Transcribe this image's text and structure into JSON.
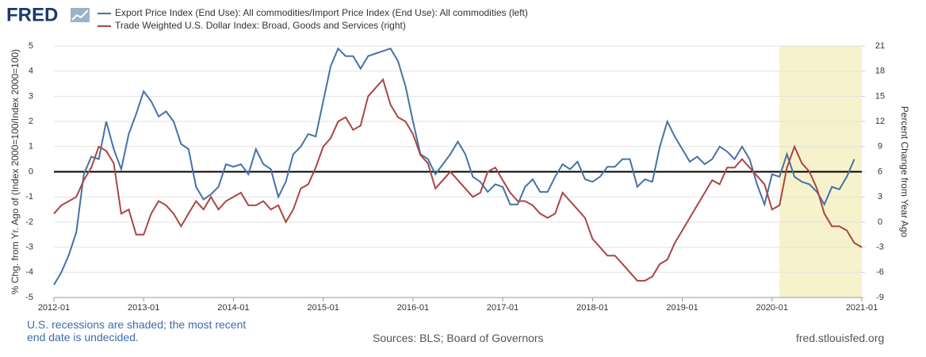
{
  "chart_data": {
    "type": "line",
    "logo": "FRED",
    "ylabel": "% Chg. from Yr. Ago of (Index 2000=100/Index 2000=100)",
    "y2label": "Percent Change from Year Ago",
    "note": "U.S. recessions are shaded; the most recent end date is undecided.",
    "source": "Sources: BLS; Board of Governors",
    "site": "fred.stlouisfed.org",
    "xlim": [
      "2012-01",
      "2021-01"
    ],
    "xticks": [
      "2012-01",
      "2013-01",
      "2014-01",
      "2015-01",
      "2016-01",
      "2017-01",
      "2018-01",
      "2019-01",
      "2020-01",
      "2021-01"
    ],
    "ylim": [
      -5,
      5
    ],
    "yticks": [
      -5,
      -4,
      -3,
      -2,
      -1,
      0,
      1,
      2,
      3,
      4,
      5
    ],
    "y2lim": [
      -9,
      21
    ],
    "y2ticks": [
      -9,
      -6,
      -3,
      0,
      3,
      6,
      9,
      12,
      15,
      18,
      21
    ],
    "grid": true,
    "reference_line": 0,
    "recessions": [
      {
        "start": "2020-02",
        "end": "2021-01"
      }
    ],
    "x": [
      "2012-01",
      "2012-02",
      "2012-03",
      "2012-04",
      "2012-05",
      "2012-06",
      "2012-07",
      "2012-08",
      "2012-09",
      "2012-10",
      "2012-11",
      "2012-12",
      "2013-01",
      "2013-02",
      "2013-03",
      "2013-04",
      "2013-05",
      "2013-06",
      "2013-07",
      "2013-08",
      "2013-09",
      "2013-10",
      "2013-11",
      "2013-12",
      "2014-01",
      "2014-02",
      "2014-03",
      "2014-04",
      "2014-05",
      "2014-06",
      "2014-07",
      "2014-08",
      "2014-09",
      "2014-10",
      "2014-11",
      "2014-12",
      "2015-01",
      "2015-02",
      "2015-03",
      "2015-04",
      "2015-05",
      "2015-06",
      "2015-07",
      "2015-08",
      "2015-09",
      "2015-10",
      "2015-11",
      "2015-12",
      "2016-01",
      "2016-02",
      "2016-03",
      "2016-04",
      "2016-05",
      "2016-06",
      "2016-07",
      "2016-08",
      "2016-09",
      "2016-10",
      "2016-11",
      "2016-12",
      "2017-01",
      "2017-02",
      "2017-03",
      "2017-04",
      "2017-05",
      "2017-06",
      "2017-07",
      "2017-08",
      "2017-09",
      "2017-10",
      "2017-11",
      "2017-12",
      "2018-01",
      "2018-02",
      "2018-03",
      "2018-04",
      "2018-05",
      "2018-06",
      "2018-07",
      "2018-08",
      "2018-09",
      "2018-10",
      "2018-11",
      "2018-12",
      "2019-01",
      "2019-02",
      "2019-03",
      "2019-04",
      "2019-05",
      "2019-06",
      "2019-07",
      "2019-08",
      "2019-09",
      "2019-10",
      "2019-11",
      "2019-12",
      "2020-01",
      "2020-02",
      "2020-03",
      "2020-04",
      "2020-05",
      "2020-06",
      "2020-07",
      "2020-08",
      "2020-09",
      "2020-10",
      "2020-11",
      "2020-12",
      "2021-01"
    ],
    "series": [
      {
        "name": "Export Price Index (End Use): All commodities/Import Price Index (End Use): All commodities (left)",
        "color": "#4572a7",
        "axis": "y",
        "values": [
          -4.5,
          -4.0,
          -3.3,
          -2.4,
          -0.1,
          0.6,
          0.5,
          2.0,
          0.9,
          0.1,
          1.5,
          2.3,
          3.2,
          2.8,
          2.2,
          2.4,
          2.0,
          1.1,
          0.9,
          -0.6,
          -1.1,
          -0.9,
          -0.6,
          0.3,
          0.2,
          0.3,
          -0.1,
          0.9,
          0.3,
          0.1,
          -1.0,
          -0.4,
          0.7,
          1.0,
          1.5,
          1.4,
          2.8,
          4.2,
          4.9,
          4.6,
          4.6,
          4.1,
          4.6,
          4.7,
          4.8,
          4.9,
          4.4,
          3.4,
          2.0,
          0.7,
          0.5,
          -0.1,
          0.3,
          0.7,
          1.2,
          0.7,
          -0.2,
          -0.4,
          -0.8,
          -0.5,
          -0.6,
          -1.3,
          -1.3,
          -0.6,
          -0.3,
          -0.8,
          -0.8,
          -0.2,
          0.3,
          0.1,
          0.4,
          -0.3,
          -0.4,
          -0.2,
          0.2,
          0.2,
          0.5,
          0.5,
          -0.6,
          -0.3,
          -0.4,
          1.0,
          2.0,
          1.4,
          0.9,
          0.4,
          0.6,
          0.3,
          0.5,
          1.0,
          0.8,
          0.5,
          1.0,
          0.5,
          -0.5,
          -1.3,
          -0.1,
          -0.2,
          0.7,
          -0.2,
          -0.4,
          -0.5,
          -0.8,
          -1.3,
          -0.6,
          -0.7,
          -0.2,
          0.5,
          null
        ]
      },
      {
        "name": "Trade Weighted U.S. Dollar Index: Broad, Goods and Services (right)",
        "color": "#aa4643",
        "axis": "y2",
        "values": [
          1,
          2,
          2.5,
          3,
          5,
          6.5,
          9,
          8.5,
          7,
          1,
          1.5,
          -1.5,
          -1.5,
          1,
          2.5,
          2,
          1,
          -0.5,
          1,
          2.5,
          1.5,
          3,
          1.5,
          2.5,
          3,
          3.5,
          2,
          2,
          2.5,
          1.5,
          2,
          0,
          1.5,
          4,
          4.5,
          6.5,
          9,
          10,
          12,
          12.5,
          11,
          11.5,
          15,
          16,
          17,
          14,
          12.5,
          12,
          10.5,
          8,
          7,
          4,
          5,
          6,
          5,
          4,
          3,
          3.5,
          6,
          6.5,
          5,
          3.5,
          2.5,
          2.5,
          2,
          1,
          0.5,
          1,
          3.5,
          2.5,
          1.5,
          0.5,
          -2,
          -3,
          -4,
          -4,
          -5,
          -6,
          -7,
          -7,
          -6.5,
          -5,
          -4.5,
          -2.5,
          -1,
          0.5,
          2,
          3.5,
          5,
          4.5,
          6.5,
          6.5,
          7.5,
          6.5,
          5.5,
          4.5,
          1.5,
          2,
          6.5,
          9,
          7,
          6,
          4,
          1,
          -0.5,
          -0.5,
          -1,
          -2.5,
          -3
        ]
      }
    ]
  }
}
